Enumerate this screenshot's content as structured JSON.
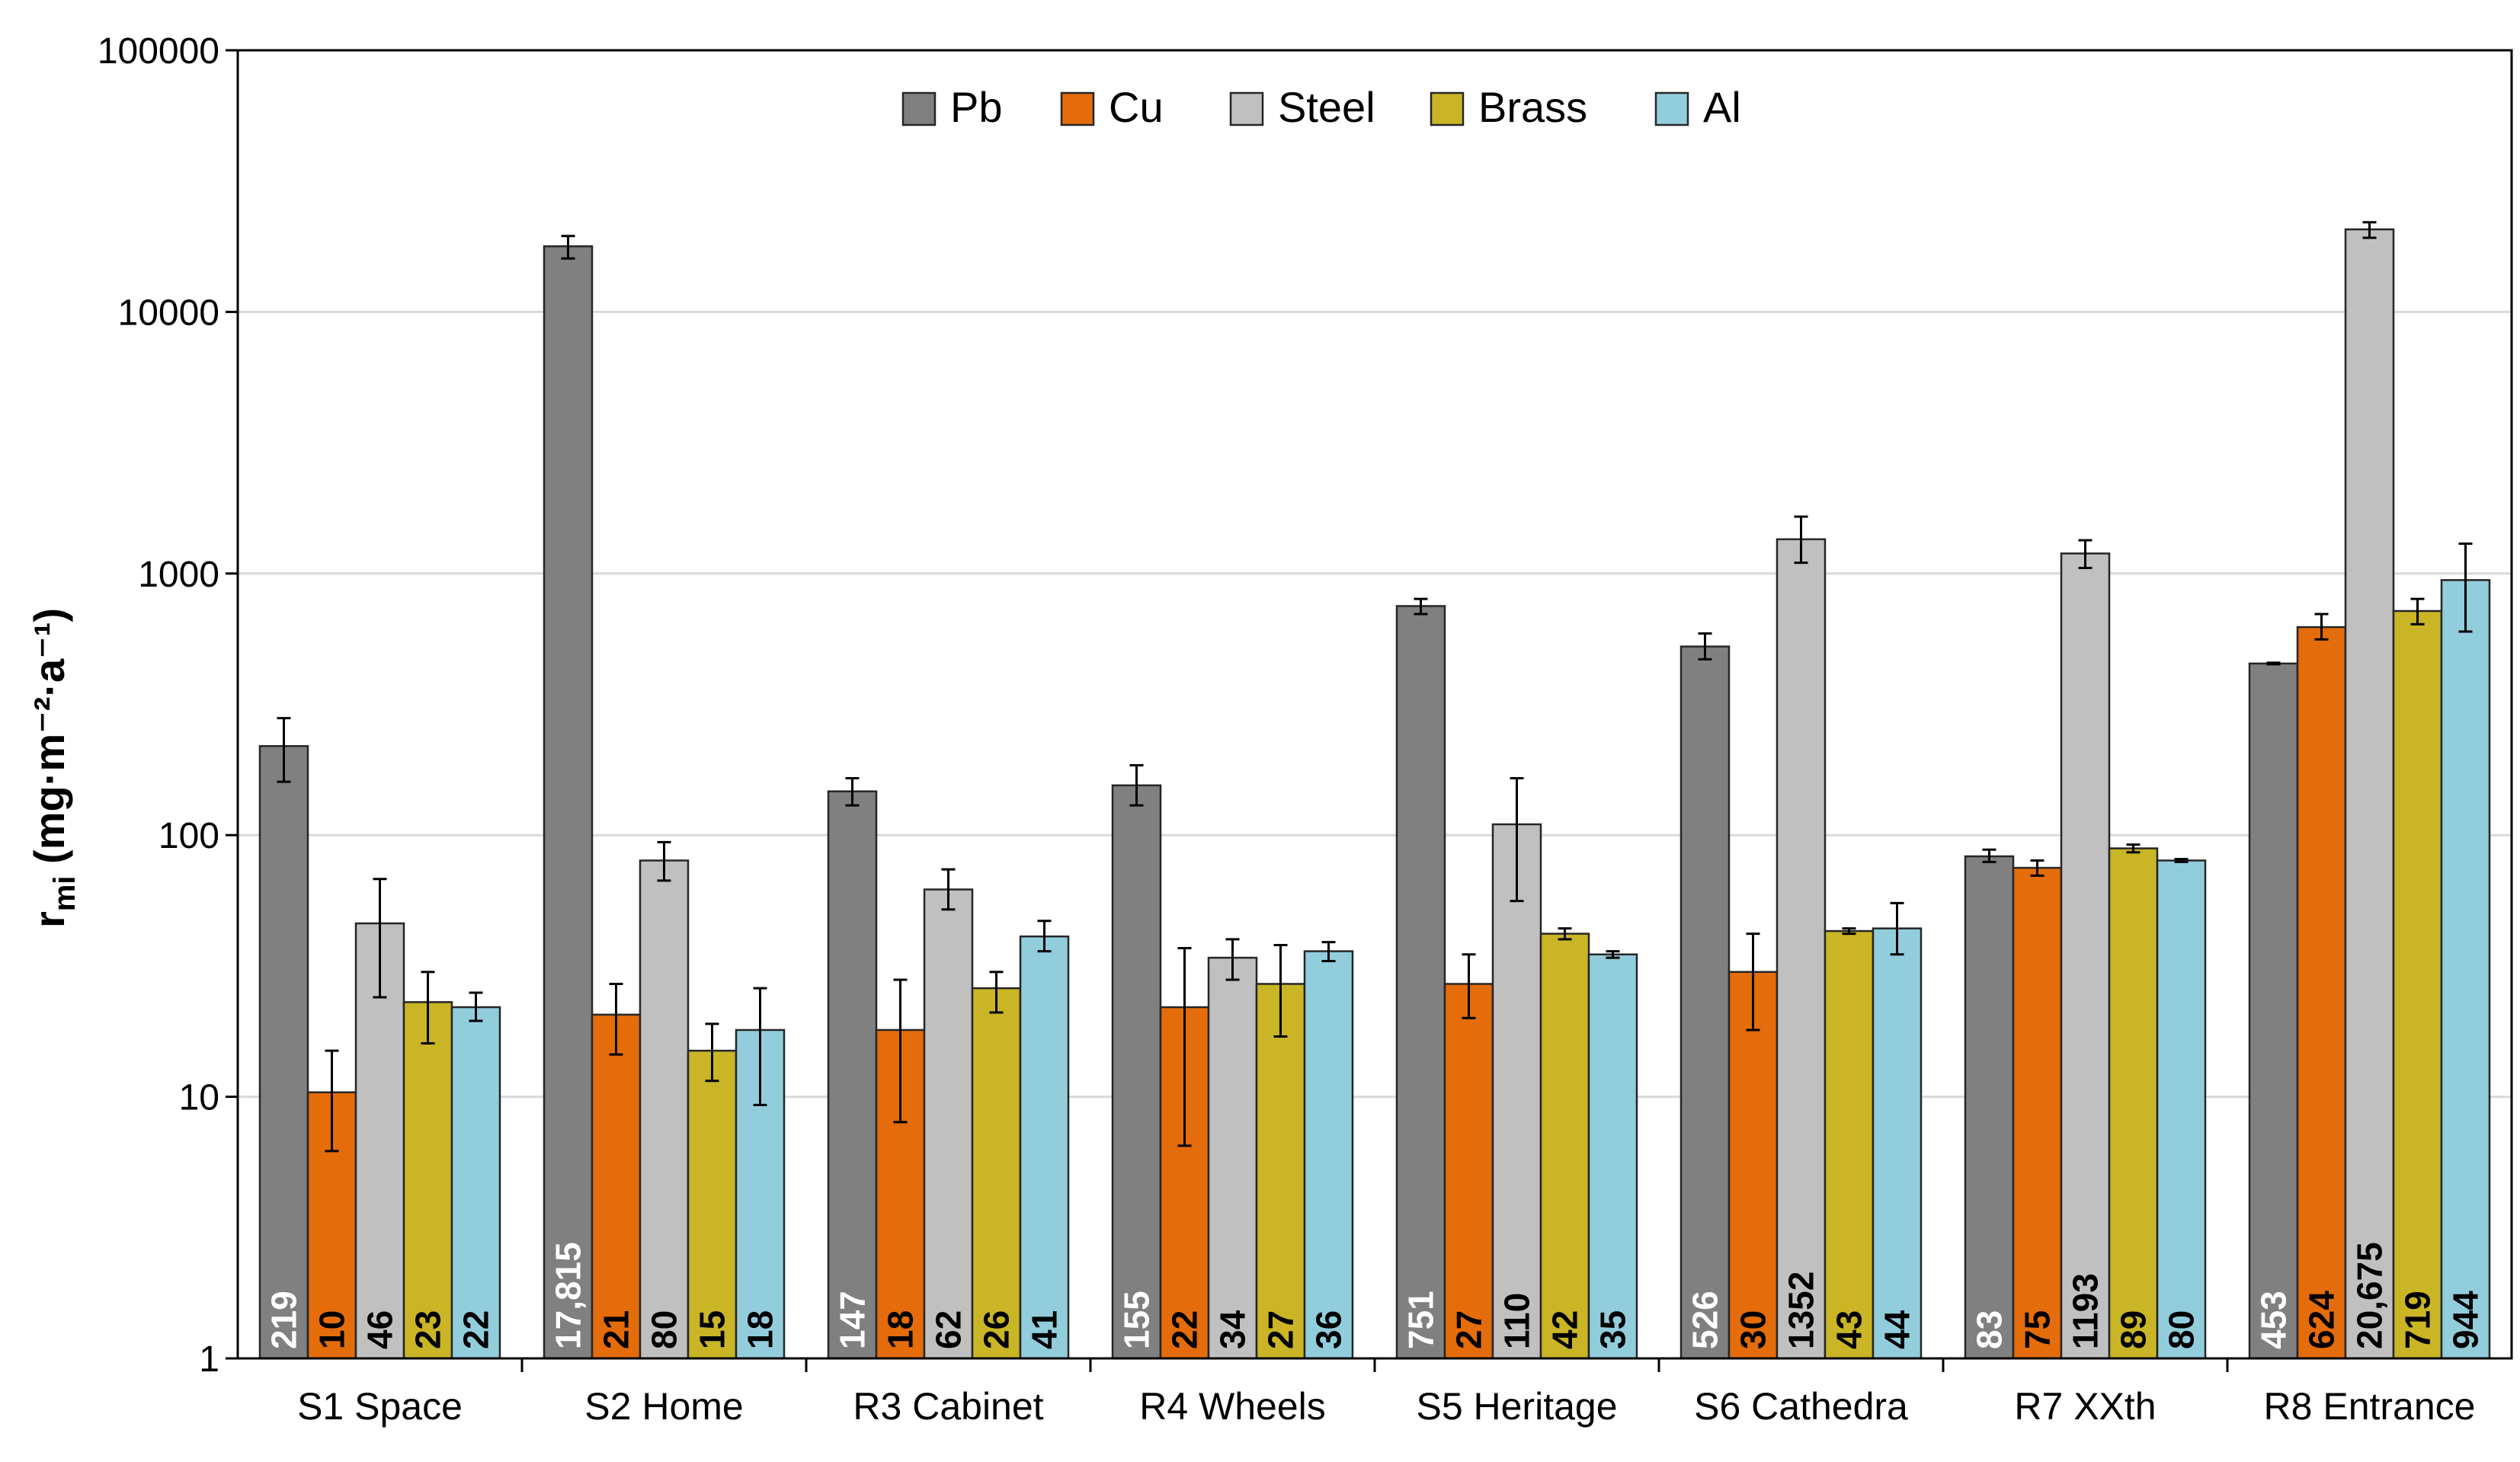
{
  "chart_data": {
    "type": "bar",
    "title": "",
    "xlabel": "",
    "ylabel_main": "r",
    "ylabel_sub": "mi",
    "ylabel_units": "(mg·m⁻²·a⁻¹)",
    "yscale": "log",
    "ylim": [
      1,
      100000
    ],
    "yticks": [
      1,
      10,
      100,
      1000,
      10000,
      100000
    ],
    "ytick_labels": [
      "1",
      "10",
      "100",
      "1000",
      "10000",
      "100000"
    ],
    "grid": true,
    "legend_position": "top-center",
    "categories": [
      "S1 Space",
      "S2 Home",
      "R3 Cabinet",
      "R4 Wheels",
      "S5 Heritage",
      "S6 Cathedra",
      "R7 XXth",
      "R8 Entrance"
    ],
    "series": [
      {
        "name": "Pb",
        "color": "#808080",
        "label_color": "#ffffff",
        "values": [
          219,
          17815,
          147,
          155,
          751,
          526,
          83,
          453
        ],
        "labels": [
          "219",
          "17,815",
          "147",
          "155",
          "751",
          "526",
          "83",
          "453"
        ],
        "errors": [
          [
            160,
            280
          ],
          [
            16000,
            19500
          ],
          [
            130,
            165
          ],
          [
            130,
            185
          ],
          [
            700,
            800
          ],
          [
            470,
            590
          ],
          [
            79,
            88
          ],
          [
            450,
            456
          ]
        ]
      },
      {
        "name": "Cu",
        "color": "#E46C0A",
        "label_color": "#000000",
        "values": [
          10.4,
          20.6,
          18,
          22,
          27,
          30,
          75,
          624
        ],
        "labels": [
          "10",
          "21",
          "18",
          "22",
          "27",
          "30",
          "75",
          "624"
        ],
        "errors": [
          [
            6.2,
            15
          ],
          [
            14.5,
            27
          ],
          [
            8,
            28
          ],
          [
            6.5,
            37
          ],
          [
            20,
            35
          ],
          [
            18,
            42
          ],
          [
            70,
            80
          ],
          [
            560,
            700
          ]
        ]
      },
      {
        "name": "Steel",
        "color": "#C0C0C0",
        "label_color": "#000000",
        "values": [
          46,
          80,
          62,
          34,
          110,
          1352,
          1193,
          20675
        ],
        "labels": [
          "46",
          "80",
          "62",
          "34",
          "110",
          "1352",
          "1193",
          "20,675"
        ],
        "errors": [
          [
            24,
            68
          ],
          [
            67,
            94
          ],
          [
            52,
            74
          ],
          [
            28,
            40
          ],
          [
            56,
            165
          ],
          [
            1100,
            1650
          ],
          [
            1050,
            1340
          ],
          [
            19200,
            22000
          ]
        ]
      },
      {
        "name": "Brass",
        "color": "#C9B526",
        "label_color": "#000000",
        "values": [
          23,
          15,
          26,
          27,
          42,
          43,
          89,
          719
        ],
        "labels": [
          "23",
          "15",
          "26",
          "27",
          "42",
          "43",
          "89",
          "719"
        ],
        "errors": [
          [
            16,
            30
          ],
          [
            11.5,
            19
          ],
          [
            21,
            30
          ],
          [
            17,
            38
          ],
          [
            40,
            44
          ],
          [
            42,
            44
          ],
          [
            86,
            92
          ],
          [
            640,
            800
          ]
        ]
      },
      {
        "name": "Al",
        "color": "#92CDDC",
        "label_color": "#000000",
        "values": [
          22,
          18,
          41,
          36,
          35,
          44,
          80,
          944
        ],
        "labels": [
          "22",
          "18",
          "41",
          "36",
          "35",
          "44",
          "80",
          "944"
        ],
        "errors": [
          [
            19.5,
            25
          ],
          [
            9.3,
            26
          ],
          [
            36,
            47
          ],
          [
            33,
            39
          ],
          [
            34,
            36
          ],
          [
            35,
            55
          ],
          [
            79,
            81
          ],
          [
            600,
            1300
          ]
        ]
      }
    ]
  }
}
